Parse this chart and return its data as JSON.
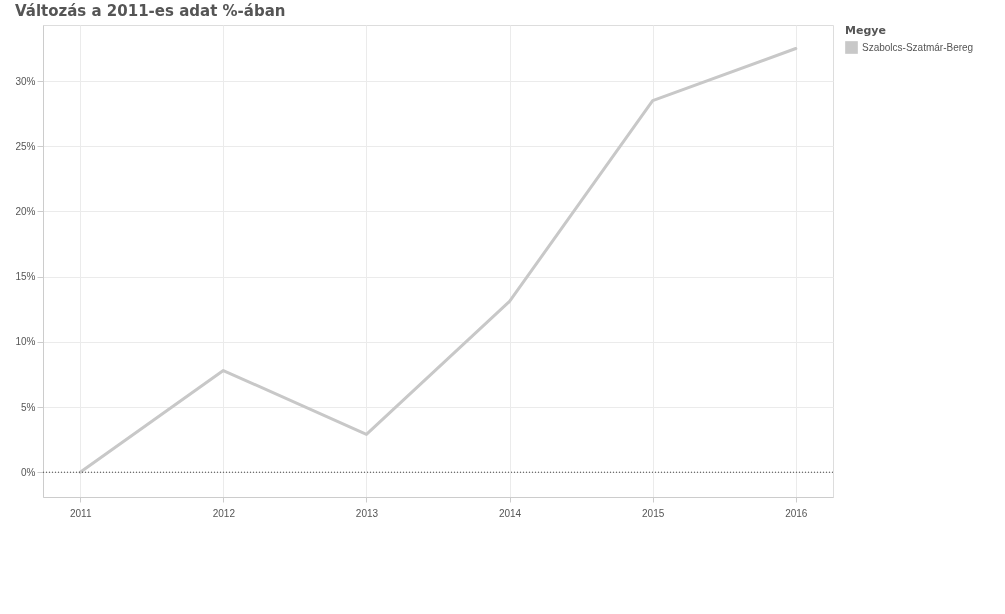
{
  "chart_data": {
    "type": "line",
    "title": "Változás a 2011-es adat %-ában",
    "legend_title": "Megye",
    "x": [
      2011,
      2012,
      2013,
      2014,
      2015,
      2016
    ],
    "series": [
      {
        "name": "Szabolcs-Szatmár-Bereg",
        "color": "#c8c8c8",
        "values": [
          0,
          7.8,
          2.9,
          13.1,
          28.5,
          32.5
        ]
      }
    ],
    "xlim": [
      2010.74,
      2016.26
    ],
    "xticks": [
      2011,
      2012,
      2013,
      2014,
      2015,
      2016
    ],
    "ylim": [
      -1.9,
      34.3
    ],
    "yticks": [
      {
        "value": 0,
        "label": "0%"
      },
      {
        "value": 5,
        "label": "5%"
      },
      {
        "value": 10,
        "label": "10%"
      },
      {
        "value": 15,
        "label": "15%"
      },
      {
        "value": 20,
        "label": "20%"
      },
      {
        "value": 25,
        "label": "25%"
      },
      {
        "value": 30,
        "label": "30%"
      }
    ],
    "grid": true,
    "legend": "top right",
    "line_style": "solid",
    "ref_lines": [
      {
        "axis": "y",
        "value": 0,
        "color": "#404040",
        "line_style": "dotted"
      }
    ]
  }
}
